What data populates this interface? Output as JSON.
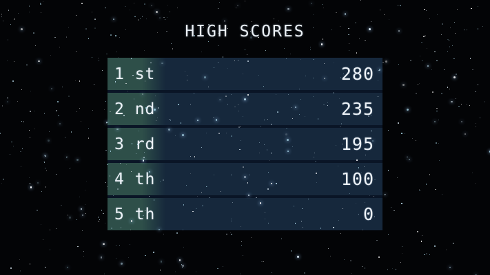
{
  "title": "HIGH SCORES",
  "scoreboard": {
    "rows": [
      {
        "rank": "1 st",
        "score": "280"
      },
      {
        "rank": "2 nd",
        "score": "235"
      },
      {
        "rank": "3 rd",
        "score": "195"
      },
      {
        "rank": "4 th",
        "score": "100"
      },
      {
        "rank": "5 th",
        "score": "0"
      }
    ]
  },
  "colors": {
    "background": "#030406",
    "panel_blue": "#16283c",
    "band_teal": "#2e4f49",
    "row_gap_navy": "#0a1526",
    "text": "#edf2f7",
    "star_palette": [
      "#ffffff",
      "#dcebf6",
      "#bcdeee",
      "#a9d6e8"
    ]
  }
}
